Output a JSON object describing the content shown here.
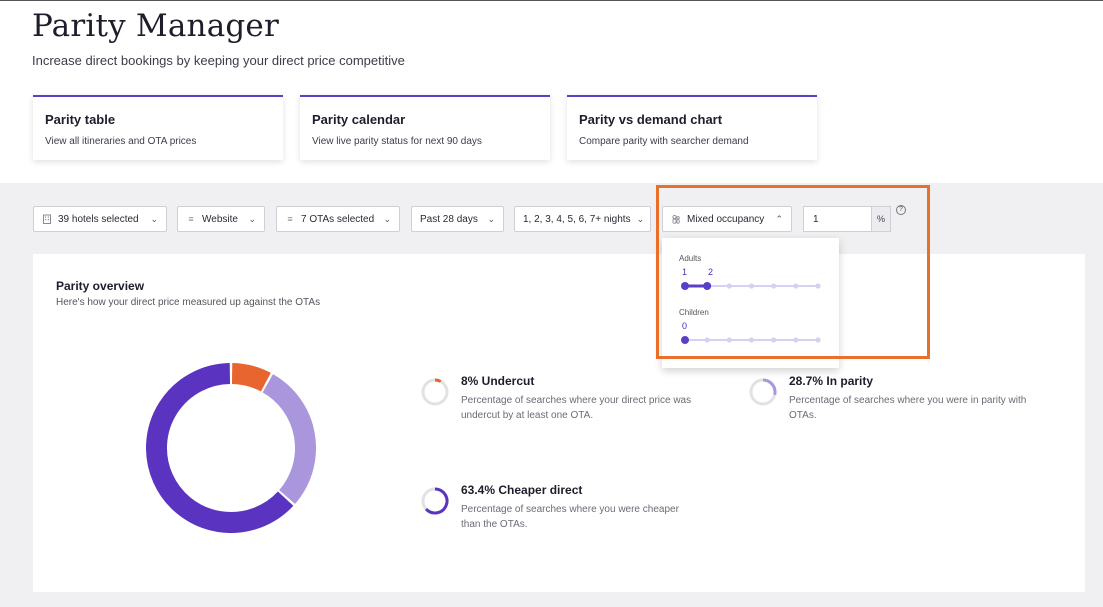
{
  "header": {
    "title": "Parity Manager",
    "subtitle": "Increase direct bookings by keeping your direct price competitive"
  },
  "nav_cards": [
    {
      "title": "Parity table",
      "description": "View all itineraries and OTA prices"
    },
    {
      "title": "Parity calendar",
      "description": "View live parity status for next 90 days"
    },
    {
      "title": "Parity vs demand chart",
      "description": "Compare parity with searcher demand"
    }
  ],
  "filters": {
    "hotels": "39 hotels selected",
    "channel": "Website",
    "otas": "7 OTAs selected",
    "period": "Past 28 days",
    "nights": "1, 2, 3, 4, 5, 6, 7+ nights",
    "occupancy": "Mixed occupancy",
    "threshold_value": "1",
    "threshold_unit": "%"
  },
  "occupancy_dropdown": {
    "adults_label": "Adults",
    "adults_min": "1",
    "adults_max": "2",
    "adults_range": [
      1,
      2
    ],
    "children_label": "Children",
    "children_value": "0",
    "children_selected": 0
  },
  "overview": {
    "title": "Parity overview",
    "subtitle": "Here's how your direct price measured up against the OTAs",
    "metrics": [
      {
        "title": "8% Undercut",
        "description": "Percentage of searches where your direct price was undercut by at least one OTA.",
        "percent": 8,
        "color": "#e8652f"
      },
      {
        "title": "28.7% In parity",
        "description": "Percentage of searches where you were in parity with OTAs.",
        "percent": 28.7,
        "color": "#a996dd"
      },
      {
        "title": "63.4% Cheaper direct",
        "description": "Percentage of searches where you were cheaper than the OTAs.",
        "percent": 63.4,
        "color": "#5a34c0"
      }
    ]
  },
  "colors": {
    "accent": "#5b3fc7",
    "undercut": "#e8652f",
    "parity": "#a996dd",
    "cheaper": "#5a34c0",
    "highlight": "#e8702a"
  }
}
